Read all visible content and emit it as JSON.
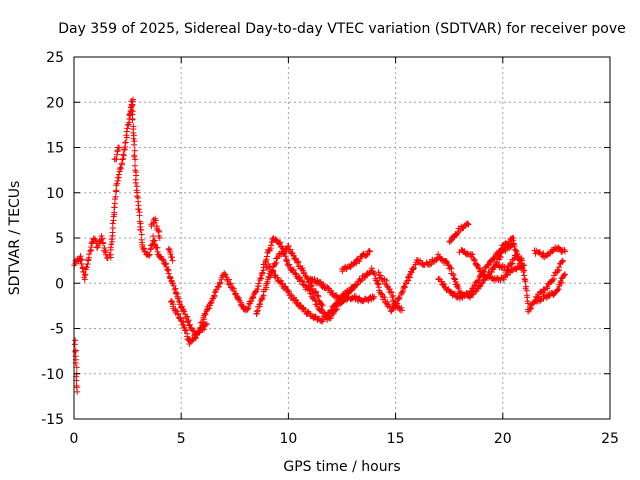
{
  "chart_data": {
    "type": "scatter",
    "title": "Day 359 of 2025, Sidereal Day-to-day VTEC variation (SDTVAR) for receiver pove",
    "xlabel": "GPS time / hours",
    "ylabel": "SDTVAR / TECUs",
    "xlim": [
      0,
      25
    ],
    "ylim": [
      -15,
      25
    ],
    "xticks": [
      0,
      5,
      10,
      15,
      20,
      25
    ],
    "yticks": [
      -15,
      -10,
      -5,
      0,
      5,
      10,
      15,
      20,
      25
    ],
    "grid": true,
    "marker": "+",
    "marker_color": "#ff0000",
    "series": [
      {
        "name": "SDTVAR",
        "trace_keypoints": [
          [
            0.0,
            2.0
          ],
          [
            0.3,
            3.0
          ],
          [
            0.5,
            0.5
          ],
          [
            0.7,
            3.0
          ],
          [
            0.9,
            5.0
          ],
          [
            1.1,
            4.0
          ],
          [
            1.3,
            5.0
          ],
          [
            1.5,
            3.0
          ],
          [
            1.7,
            3.0
          ],
          [
            2.0,
            11.0
          ],
          [
            2.3,
            14.0
          ],
          [
            2.5,
            17.0
          ],
          [
            2.7,
            20.0
          ],
          [
            2.9,
            11.0
          ],
          [
            3.2,
            4.0
          ],
          [
            3.5,
            3.0
          ],
          [
            3.7,
            5.0
          ],
          [
            4.0,
            3.0
          ],
          [
            4.3,
            2.0
          ],
          [
            4.6,
            0.0
          ],
          [
            4.9,
            -2.0
          ],
          [
            5.3,
            -4.0
          ],
          [
            5.7,
            -6.0
          ],
          [
            6.1,
            -3.5
          ],
          [
            6.5,
            -1.5
          ],
          [
            7.0,
            1.0
          ],
          [
            7.5,
            -1.0
          ],
          [
            8.0,
            -3.0
          ],
          [
            8.5,
            -1.0
          ],
          [
            9.0,
            3.0
          ],
          [
            9.3,
            5.0
          ],
          [
            9.6,
            4.5
          ],
          [
            10.0,
            2.0
          ],
          [
            10.5,
            0.5
          ],
          [
            11.0,
            -1.0
          ],
          [
            11.5,
            -3.0
          ],
          [
            11.9,
            -4.0
          ],
          [
            12.3,
            -2.5
          ],
          [
            12.8,
            -1.0
          ],
          [
            13.4,
            0.5
          ],
          [
            13.9,
            1.5
          ],
          [
            14.4,
            -1.5
          ],
          [
            14.8,
            -3.0
          ],
          [
            15.2,
            -1.5
          ],
          [
            15.6,
            0.5
          ],
          [
            16.0,
            2.5
          ],
          [
            16.5,
            2.0
          ],
          [
            17.0,
            3.0
          ],
          [
            17.5,
            2.0
          ],
          [
            18.0,
            -1.0
          ],
          [
            18.5,
            -1.5
          ],
          [
            19.0,
            0.0
          ],
          [
            19.5,
            1.5
          ],
          [
            20.0,
            3.5
          ],
          [
            20.5,
            4.5
          ],
          [
            21.0,
            1.0
          ],
          [
            21.2,
            -3.0
          ],
          [
            21.6,
            -1.5
          ],
          [
            22.2,
            0.0
          ],
          [
            22.8,
            2.5
          ]
        ],
        "extra_segments": [
          [
            [
              0.05,
              -6.5
            ],
            [
              0.1,
              -9.0
            ],
            [
              0.15,
              -12.0
            ]
          ],
          [
            [
              1.9,
              13.5
            ],
            [
              2.1,
              15.0
            ]
          ],
          [
            [
              2.6,
              18.5
            ],
            [
              2.75,
              20.3
            ]
          ],
          [
            [
              3.6,
              6.5
            ],
            [
              3.8,
              7.0
            ],
            [
              4.0,
              5.0
            ]
          ],
          [
            [
              4.4,
              4.0
            ],
            [
              4.6,
              2.5
            ]
          ],
          [
            [
              4.5,
              -2.0
            ],
            [
              5.0,
              -4.0
            ],
            [
              5.4,
              -6.5
            ],
            [
              5.8,
              -5.5
            ],
            [
              6.2,
              -4.5
            ]
          ],
          [
            [
              8.5,
              -3.5
            ],
            [
              9.0,
              0.0
            ],
            [
              9.5,
              3.0
            ],
            [
              10.0,
              4.0
            ],
            [
              10.5,
              2.0
            ],
            [
              11.0,
              0.0
            ],
            [
              11.6,
              -2.5
            ]
          ],
          [
            [
              9.0,
              2.0
            ],
            [
              9.5,
              0.5
            ],
            [
              10.0,
              -1.0
            ],
            [
              10.5,
              -2.5
            ],
            [
              11.0,
              -3.5
            ],
            [
              11.5,
              -4.2
            ],
            [
              12.0,
              -3.0
            ],
            [
              12.5,
              -1.5
            ],
            [
              13.0,
              -0.5
            ]
          ],
          [
            [
              11.0,
              0.5
            ],
            [
              11.5,
              0.0
            ],
            [
              12.0,
              -1.0
            ],
            [
              12.5,
              -2.0
            ],
            [
              13.0,
              -1.5
            ],
            [
              13.5,
              -2.0
            ],
            [
              14.0,
              -1.5
            ]
          ],
          [
            [
              12.5,
              1.5
            ],
            [
              13.0,
              2.0
            ],
            [
              13.5,
              3.0
            ],
            [
              13.8,
              3.5
            ]
          ],
          [
            [
              14.2,
              1.0
            ],
            [
              14.6,
              0.0
            ],
            [
              15.0,
              -2.5
            ],
            [
              15.3,
              -3.0
            ]
          ],
          [
            [
              17.5,
              4.5
            ],
            [
              18.0,
              6.0
            ],
            [
              18.4,
              6.5
            ]
          ],
          [
            [
              17.0,
              0.5
            ],
            [
              17.5,
              -1.0
            ],
            [
              18.0,
              -1.5
            ],
            [
              18.5,
              -1.0
            ],
            [
              19.0,
              1.0
            ],
            [
              19.5,
              2.5
            ],
            [
              20.0,
              4.0
            ],
            [
              20.5,
              5.0
            ]
          ],
          [
            [
              18.0,
              3.5
            ],
            [
              18.6,
              3.0
            ],
            [
              19.0,
              1.0
            ],
            [
              19.5,
              0.5
            ],
            [
              20.0,
              0.5
            ],
            [
              20.4,
              1.5
            ],
            [
              21.0,
              2.0
            ]
          ],
          [
            [
              21.5,
              3.5
            ],
            [
              22.0,
              3.0
            ],
            [
              22.5,
              4.0
            ],
            [
              22.9,
              3.5
            ]
          ],
          [
            [
              21.5,
              -2.0
            ],
            [
              22.0,
              -1.5
            ],
            [
              22.5,
              -1.0
            ],
            [
              22.9,
              1.0
            ]
          ],
          [
            [
              19.8,
              2.0
            ],
            [
              20.2,
              1.5
            ],
            [
              20.6,
              3.0
            ],
            [
              20.9,
              2.5
            ]
          ]
        ]
      }
    ]
  }
}
